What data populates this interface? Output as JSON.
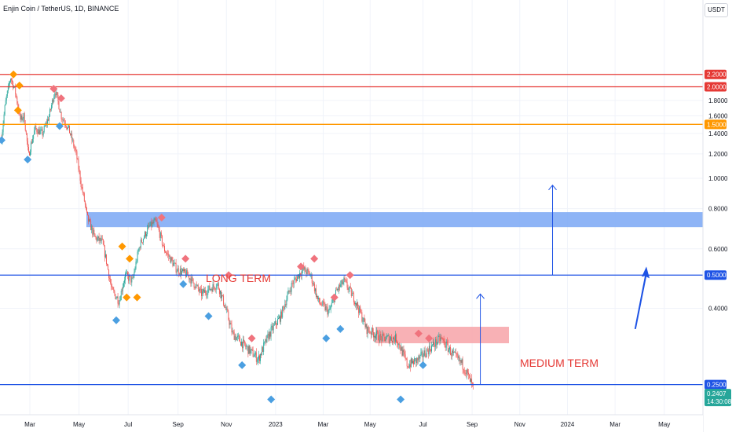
{
  "header": {
    "title": "Enjin Coin / TetherUS, 1D, BINANCE",
    "currency": "USDT"
  },
  "colors": {
    "up": "#26a69a",
    "down": "#ef5350",
    "red_line": "#e53935",
    "orange_line": "#ff9800",
    "blue_line": "#1e53e5",
    "zone_blue": "#7aa7f5",
    "zone_red": "#f7a3a8",
    "label_text": "#e53935",
    "marker_red": "#f0737d",
    "marker_orange": "#ff9800",
    "marker_blue": "#4b9fe1"
  },
  "chart_data": {
    "type": "candlestick",
    "symbol": "ENJ/USDT",
    "y_axis_ticks": [
      "1.8000",
      "1.6000",
      "1.4000",
      "1.2000",
      "1.0000",
      "0.8000",
      "0.6000",
      "0.4000"
    ],
    "x_axis_ticks": [
      "Mar",
      "May",
      "Jul",
      "Sep",
      "Nov",
      "2023",
      "Mar",
      "May",
      "Jul",
      "Sep",
      "Nov",
      "2024",
      "Mar",
      "May"
    ],
    "ylim": [
      0.14,
      2.35
    ],
    "horizontal_levels": [
      {
        "value": 2.2,
        "label": "2.2000",
        "color": "red"
      },
      {
        "value": 2.0,
        "label": "2.0000",
        "color": "red"
      },
      {
        "value": 1.5,
        "label": "1.5000",
        "color": "orange"
      },
      {
        "value": 0.5,
        "label": "0.5000",
        "color": "blue"
      },
      {
        "value": 0.25,
        "label": "0.2500",
        "color": "blue"
      }
    ],
    "last_price": {
      "value": 0.2407,
      "label": "0.2407",
      "countdown": "14:30:08"
    },
    "zones": [
      {
        "label": "LONG TERM",
        "low": 0.7,
        "high": 0.78,
        "color": "blue"
      },
      {
        "label": "MEDIUM TERM",
        "low": 0.32,
        "high": 0.355,
        "color": "red"
      }
    ],
    "price_path": [
      [
        0.0,
        1.35
      ],
      [
        0.005,
        1.75
      ],
      [
        0.012,
        2.15
      ],
      [
        0.018,
        1.95
      ],
      [
        0.025,
        1.55
      ],
      [
        0.03,
        1.6
      ],
      [
        0.036,
        1.18
      ],
      [
        0.045,
        1.45
      ],
      [
        0.055,
        1.4
      ],
      [
        0.064,
        1.6
      ],
      [
        0.072,
        1.95
      ],
      [
        0.08,
        1.6
      ],
      [
        0.09,
        1.45
      ],
      [
        0.1,
        1.2
      ],
      [
        0.107,
        0.95
      ],
      [
        0.115,
        0.75
      ],
      [
        0.125,
        0.65
      ],
      [
        0.135,
        0.63
      ],
      [
        0.148,
        0.45
      ],
      [
        0.158,
        0.42
      ],
      [
        0.166,
        0.5
      ],
      [
        0.176,
        0.48
      ],
      [
        0.186,
        0.62
      ],
      [
        0.198,
        0.7
      ],
      [
        0.207,
        0.73
      ],
      [
        0.218,
        0.6
      ],
      [
        0.235,
        0.52
      ],
      [
        0.25,
        0.5
      ],
      [
        0.268,
        0.44
      ],
      [
        0.29,
        0.47
      ],
      [
        0.31,
        0.34
      ],
      [
        0.33,
        0.31
      ],
      [
        0.345,
        0.29
      ],
      [
        0.36,
        0.34
      ],
      [
        0.375,
        0.38
      ],
      [
        0.39,
        0.47
      ],
      [
        0.405,
        0.52
      ],
      [
        0.415,
        0.5
      ],
      [
        0.425,
        0.42
      ],
      [
        0.44,
        0.39
      ],
      [
        0.45,
        0.45
      ],
      [
        0.46,
        0.48
      ],
      [
        0.475,
        0.42
      ],
      [
        0.49,
        0.35
      ],
      [
        0.51,
        0.33
      ],
      [
        0.53,
        0.33
      ],
      [
        0.545,
        0.28
      ],
      [
        0.56,
        0.29
      ],
      [
        0.575,
        0.31
      ],
      [
        0.59,
        0.33
      ],
      [
        0.605,
        0.3
      ],
      [
        0.62,
        0.28
      ],
      [
        0.635,
        0.24
      ]
    ],
    "markers": [
      {
        "t": 0.0,
        "v": 1.33,
        "color": "blue"
      },
      {
        "t": 0.016,
        "v": 2.2,
        "color": "orange"
      },
      {
        "t": 0.024,
        "v": 2.02,
        "color": "orange"
      },
      {
        "t": 0.022,
        "v": 1.67,
        "color": "orange"
      },
      {
        "t": 0.035,
        "v": 1.15,
        "color": "blue"
      },
      {
        "t": 0.07,
        "v": 1.97,
        "color": "red"
      },
      {
        "t": 0.08,
        "v": 1.83,
        "color": "red"
      },
      {
        "t": 0.078,
        "v": 1.48,
        "color": "blue"
      },
      {
        "t": 0.154,
        "v": 0.37,
        "color": "blue"
      },
      {
        "t": 0.162,
        "v": 0.61,
        "color": "orange"
      },
      {
        "t": 0.168,
        "v": 0.43,
        "color": "orange"
      },
      {
        "t": 0.172,
        "v": 0.56,
        "color": "orange"
      },
      {
        "t": 0.182,
        "v": 0.43,
        "color": "orange"
      },
      {
        "t": 0.215,
        "v": 0.75,
        "color": "red"
      },
      {
        "t": 0.244,
        "v": 0.47,
        "color": "blue"
      },
      {
        "t": 0.247,
        "v": 0.56,
        "color": "red"
      },
      {
        "t": 0.278,
        "v": 0.38,
        "color": "blue"
      },
      {
        "t": 0.305,
        "v": 0.5,
        "color": "red"
      },
      {
        "t": 0.323,
        "v": 0.28,
        "color": "blue"
      },
      {
        "t": 0.336,
        "v": 0.33,
        "color": "red"
      },
      {
        "t": 0.362,
        "v": 0.23,
        "color": "blue"
      },
      {
        "t": 0.402,
        "v": 0.53,
        "color": "red"
      },
      {
        "t": 0.42,
        "v": 0.56,
        "color": "red"
      },
      {
        "t": 0.436,
        "v": 0.33,
        "color": "blue"
      },
      {
        "t": 0.447,
        "v": 0.43,
        "color": "red"
      },
      {
        "t": 0.455,
        "v": 0.35,
        "color": "blue"
      },
      {
        "t": 0.468,
        "v": 0.5,
        "color": "red"
      },
      {
        "t": 0.536,
        "v": 0.23,
        "color": "blue"
      },
      {
        "t": 0.56,
        "v": 0.34,
        "color": "red"
      },
      {
        "t": 0.566,
        "v": 0.28,
        "color": "blue"
      },
      {
        "t": 0.574,
        "v": 0.33,
        "color": "red"
      }
    ],
    "arrows": [
      {
        "style": "thin",
        "t": 0.74,
        "from": 0.5,
        "to": 0.95
      },
      {
        "style": "thin",
        "t": 0.643,
        "from": 0.25,
        "to": 0.44
      },
      {
        "style": "bold",
        "t0": 0.85,
        "t1": 0.865,
        "from": 0.35,
        "to": 0.53
      }
    ]
  }
}
